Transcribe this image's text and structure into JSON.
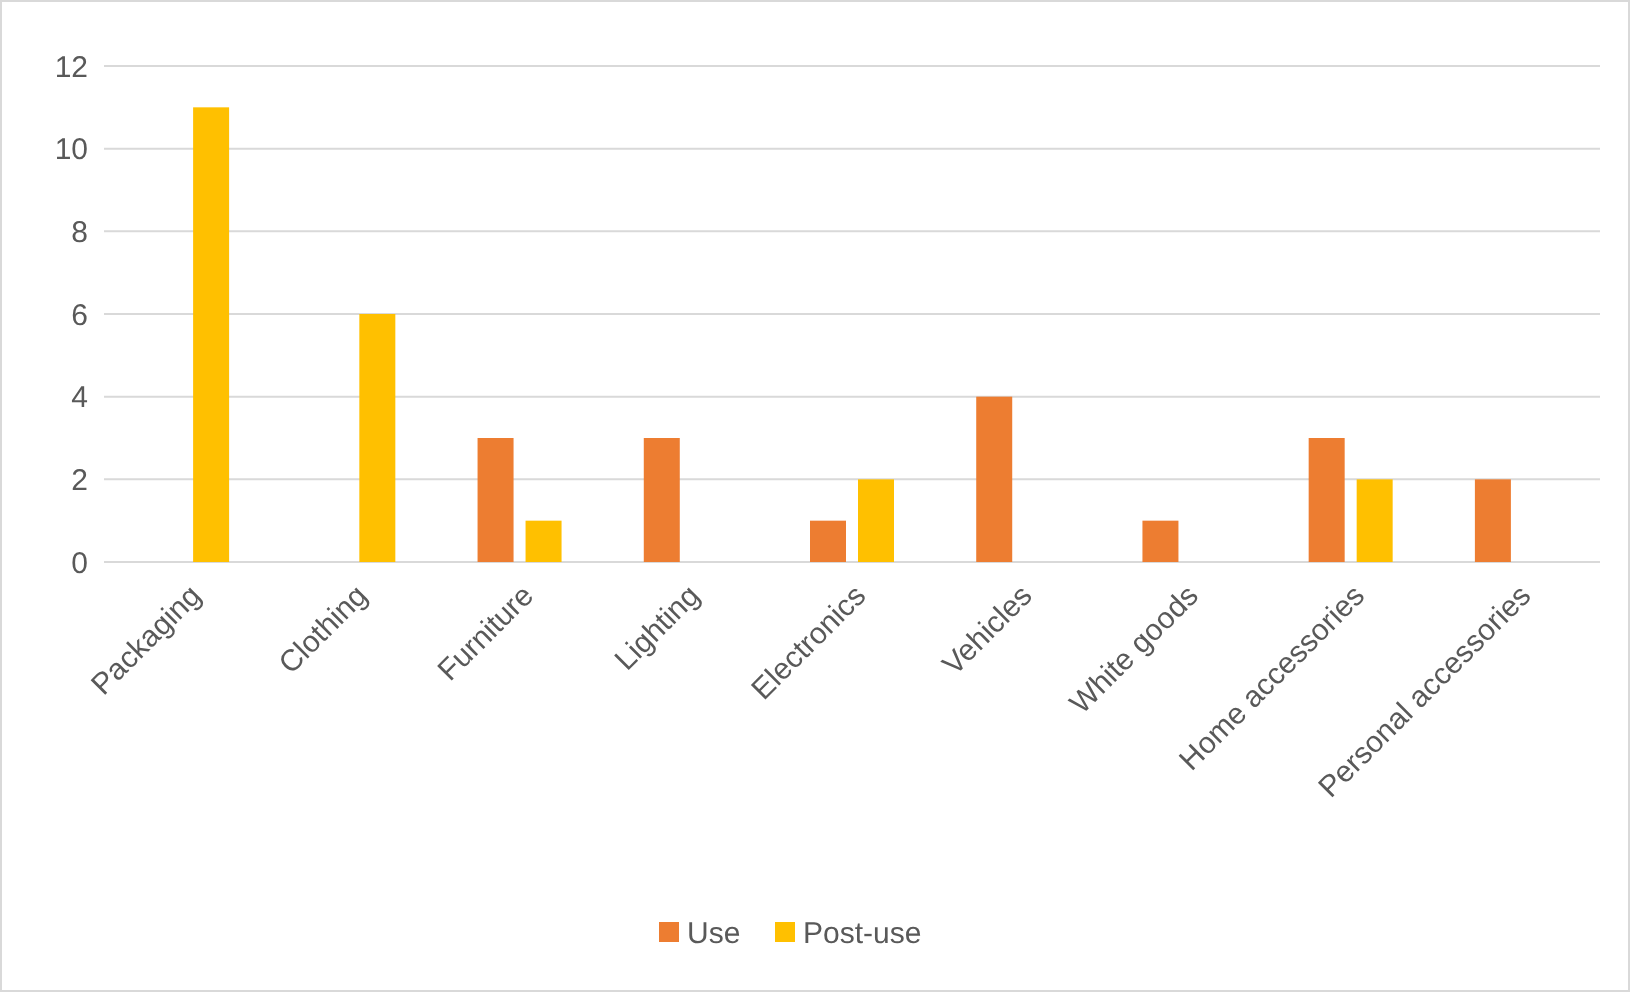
{
  "chart_data": {
    "type": "bar",
    "categories": [
      "Packaging",
      "Clothing",
      "Furniture",
      "Lighting",
      "Electronics",
      "Vehicles",
      "White goods",
      "Home accessories",
      "Personal accessories"
    ],
    "series": [
      {
        "name": "Use",
        "color": "#ed7d31",
        "values": [
          null,
          null,
          3,
          3,
          1,
          4,
          1,
          3,
          2
        ]
      },
      {
        "name": "Post-use",
        "color": "#ffc000",
        "values": [
          11,
          6,
          1,
          null,
          2,
          null,
          null,
          2,
          null
        ]
      }
    ],
    "ylim": [
      0,
      12
    ],
    "yticks": [
      0,
      2,
      4,
      6,
      8,
      10,
      12
    ],
    "grid": "y",
    "legend": "bottom"
  }
}
